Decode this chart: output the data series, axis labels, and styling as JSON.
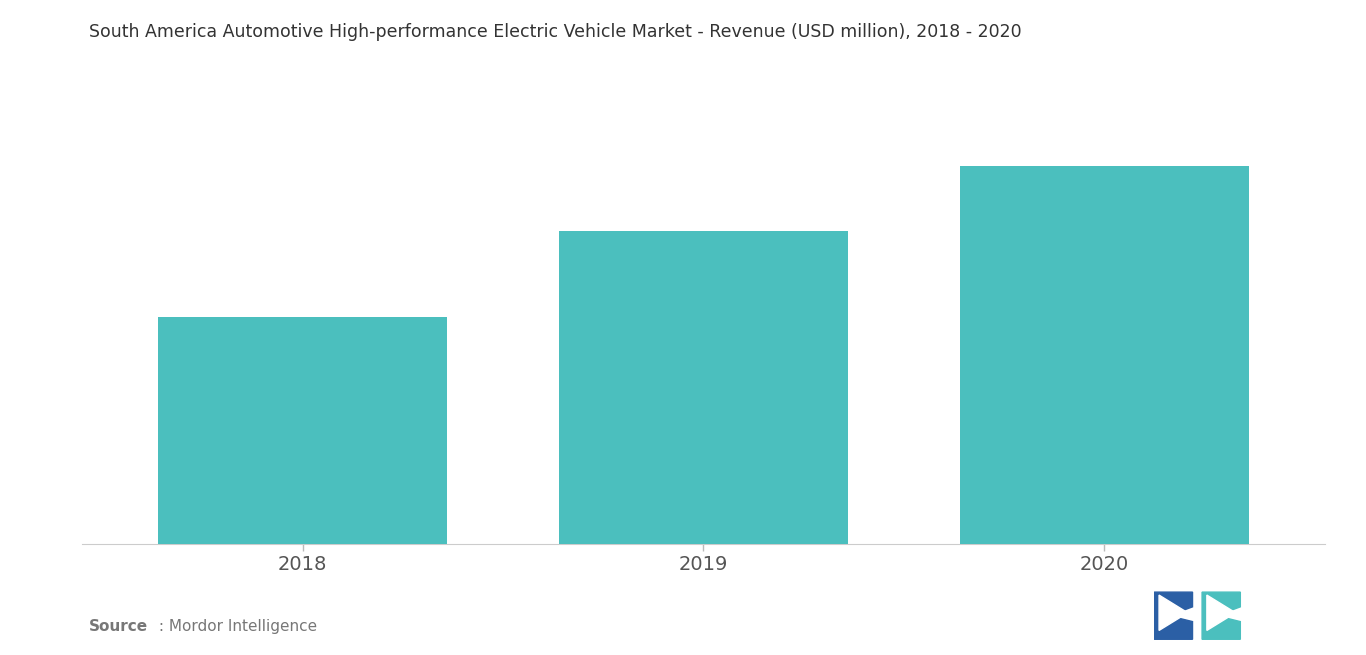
{
  "title": "South America Automotive High-performance Electric Vehicle Market - Revenue (USD million), 2018 - 2020",
  "categories": [
    "2018",
    "2019",
    "2020"
  ],
  "values": [
    42,
    58,
    70
  ],
  "bar_color": "#4BBFBE",
  "background_color": "#ffffff",
  "title_fontsize": 12.5,
  "tick_fontsize": 14,
  "source_bold": "Source",
  "source_rest": " : Mordor Intelligence",
  "ylim": [
    0,
    85
  ],
  "bar_width": 0.72,
  "xlim": [
    -0.55,
    2.55
  ]
}
